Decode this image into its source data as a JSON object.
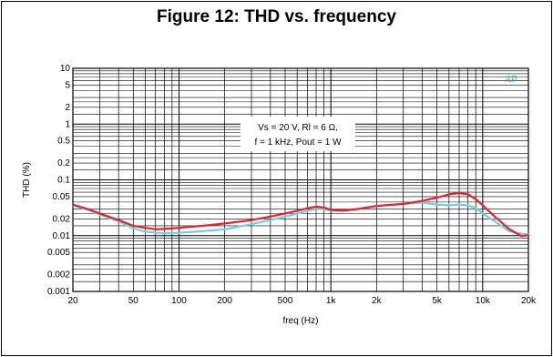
{
  "title": "Figure 12: THD vs. frequency",
  "logo_text": "AP",
  "colors": {
    "series_red": "#e8202a",
    "series_cyan": "#6fd0e0",
    "grid": "#000000"
  },
  "chart_data": {
    "type": "line",
    "title": "Figure 12: THD vs. frequency",
    "xlabel": "freq  (Hz)",
    "ylabel": "THD (%)",
    "xscale": "log",
    "yscale": "log",
    "xlim": [
      20,
      20000
    ],
    "ylim": [
      0.001,
      10
    ],
    "grid": true,
    "x_ticks": [
      {
        "v": 20,
        "label": "20"
      },
      {
        "v": 50,
        "label": "50"
      },
      {
        "v": 100,
        "label": "100"
      },
      {
        "v": 200,
        "label": "200"
      },
      {
        "v": 500,
        "label": "500"
      },
      {
        "v": 1000,
        "label": "1k"
      },
      {
        "v": 2000,
        "label": "2k"
      },
      {
        "v": 5000,
        "label": "5k"
      },
      {
        "v": 10000,
        "label": "10k"
      },
      {
        "v": 20000,
        "label": "20k"
      }
    ],
    "y_ticks": [
      {
        "v": 10,
        "label": "10"
      },
      {
        "v": 5,
        "label": "5"
      },
      {
        "v": 2,
        "label": "2"
      },
      {
        "v": 1,
        "label": "1"
      },
      {
        "v": 0.5,
        "label": "0.5"
      },
      {
        "v": 0.2,
        "label": "0.2"
      },
      {
        "v": 0.1,
        "label": "0.1"
      },
      {
        "v": 0.05,
        "label": "0.05"
      },
      {
        "v": 0.02,
        "label": "0.02"
      },
      {
        "v": 0.01,
        "label": "0.01"
      },
      {
        "v": 0.005,
        "label": "0.005"
      },
      {
        "v": 0.002,
        "label": "0.002"
      },
      {
        "v": 0.001,
        "label": "0.001"
      }
    ],
    "annotation": [
      "Vs = 20 V,  Rl  = 6 Ω,",
      "f = 1 kHz, Pout = 1 W"
    ],
    "series": [
      {
        "color": "#e8202a",
        "x": [
          20,
          25,
          30,
          40,
          50,
          60,
          70,
          80,
          100,
          150,
          200,
          300,
          400,
          500,
          600,
          700,
          800,
          900,
          1000,
          1200,
          1500,
          2000,
          3000,
          4000,
          5000,
          6000,
          7000,
          8000,
          9000,
          10000,
          12000,
          15000,
          18000,
          20000
        ],
        "y": [
          0.036,
          0.03,
          0.025,
          0.019,
          0.015,
          0.0138,
          0.013,
          0.0132,
          0.0138,
          0.0152,
          0.0165,
          0.019,
          0.022,
          0.025,
          0.028,
          0.031,
          0.033,
          0.032,
          0.029,
          0.028,
          0.03,
          0.034,
          0.037,
          0.042,
          0.048,
          0.055,
          0.058,
          0.055,
          0.045,
          0.035,
          0.022,
          0.013,
          0.0098,
          0.0102
        ]
      },
      {
        "color": "#6fd0e0",
        "x": [
          20,
          25,
          30,
          40,
          50,
          60,
          70,
          80,
          100,
          150,
          200,
          300,
          400,
          500,
          600,
          700,
          800,
          900,
          1000,
          1200,
          1500,
          2000,
          3000,
          4000,
          5000,
          6000,
          7000,
          8000,
          9000,
          10000,
          12000,
          15000,
          18000,
          20000
        ],
        "y": [
          0.035,
          0.029,
          0.024,
          0.018,
          0.0135,
          0.0118,
          0.0112,
          0.011,
          0.0112,
          0.0122,
          0.013,
          0.016,
          0.019,
          0.022,
          0.025,
          0.028,
          0.03,
          0.03,
          0.028,
          0.028,
          0.03,
          0.034,
          0.037,
          0.039,
          0.036,
          0.035,
          0.036,
          0.035,
          0.031,
          0.025,
          0.018,
          0.012,
          0.0108,
          0.0105
        ]
      }
    ]
  }
}
